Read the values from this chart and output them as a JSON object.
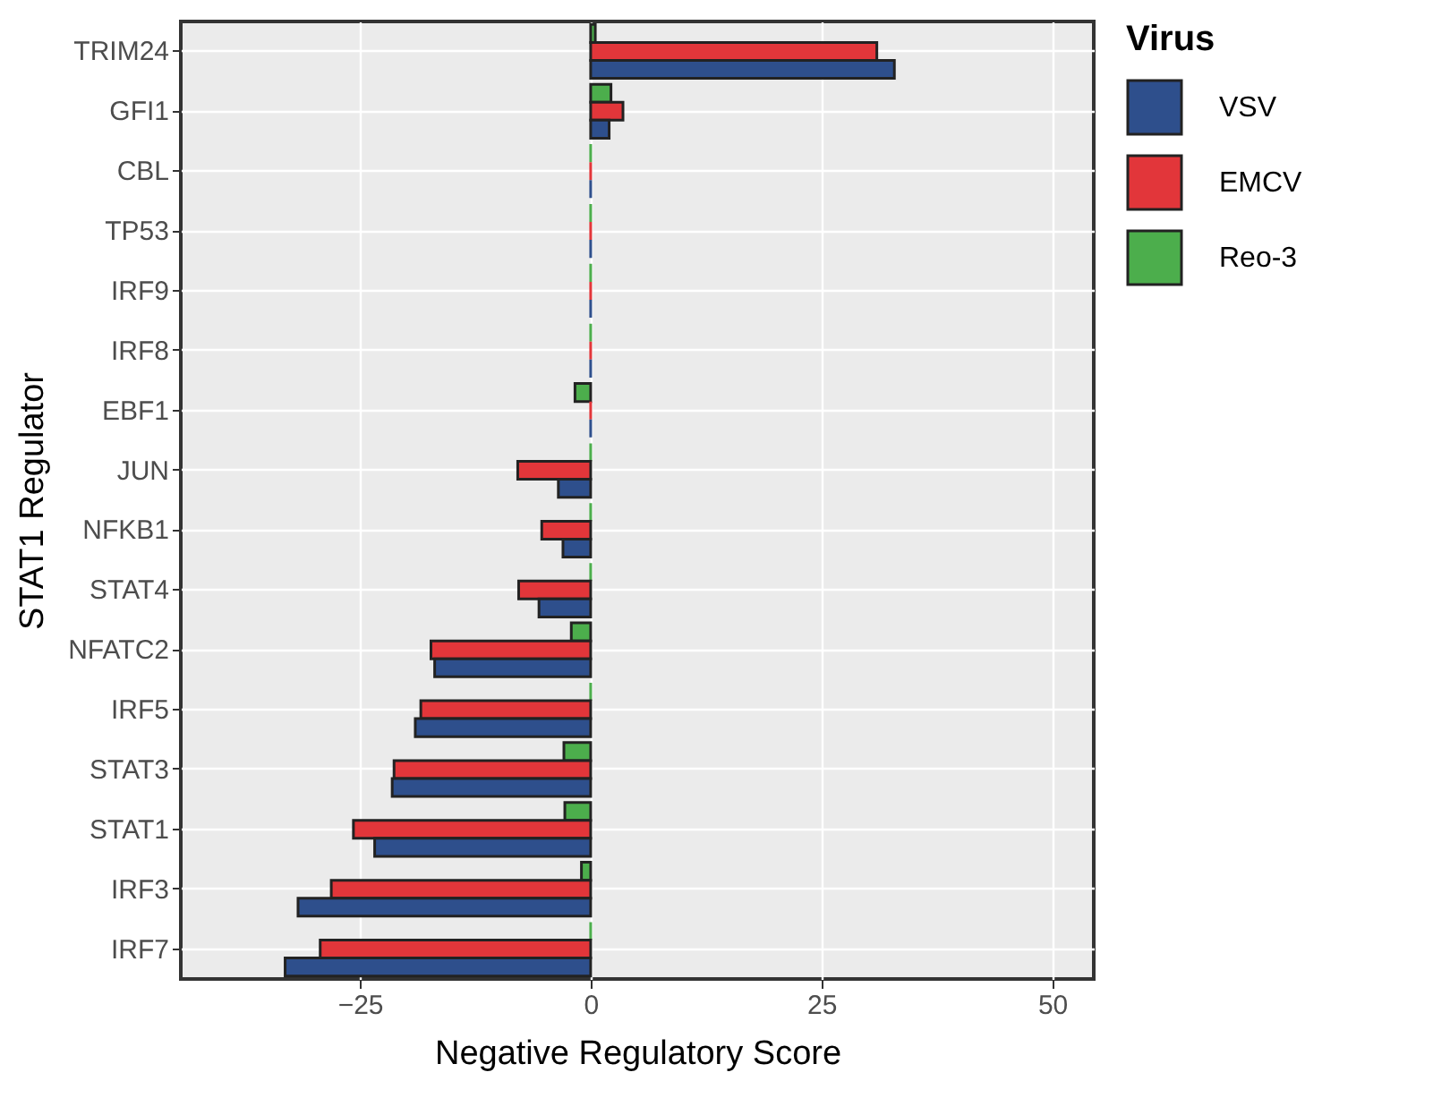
{
  "chart_data": {
    "type": "bar",
    "orientation": "horizontal",
    "xlabel": "Negative Regulatory Score",
    "ylabel": "STAT1 Regulator",
    "legend_title": "Virus",
    "categories": [
      "TRIM24",
      "GFI1",
      "CBL",
      "TP53",
      "IRF9",
      "IRF8",
      "EBF1",
      "JUN",
      "NFKB1",
      "STAT4",
      "NFATC2",
      "IRF5",
      "STAT3",
      "STAT1",
      "IRF3",
      "IRF7"
    ],
    "series": [
      {
        "name": "Reo-3",
        "color": "#4cae4c",
        "values": [
          0.5,
          2.2,
          0,
          0,
          0,
          0,
          -1.7,
          0,
          0,
          0,
          -2.1,
          0,
          -2.9,
          -2.8,
          -1.0,
          0
        ]
      },
      {
        "name": "EMCV",
        "color": "#e2363a",
        "values": [
          31.0,
          3.5,
          0,
          0,
          0,
          0,
          0,
          -7.9,
          -5.3,
          -7.8,
          -17.3,
          -18.4,
          -21.3,
          -25.7,
          -28.1,
          -29.3
        ]
      },
      {
        "name": "VSV",
        "color": "#2e4f8c",
        "values": [
          32.9,
          2.0,
          0,
          0,
          0,
          0,
          0,
          -3.5,
          -3.0,
          -5.6,
          -16.9,
          -19.0,
          -21.5,
          -23.4,
          -31.7,
          -33.1
        ]
      }
    ],
    "xlim": [
      -44.4,
      54.5
    ],
    "xticks": [
      -25,
      0,
      25,
      50
    ],
    "grid": true,
    "legend": "right"
  }
}
